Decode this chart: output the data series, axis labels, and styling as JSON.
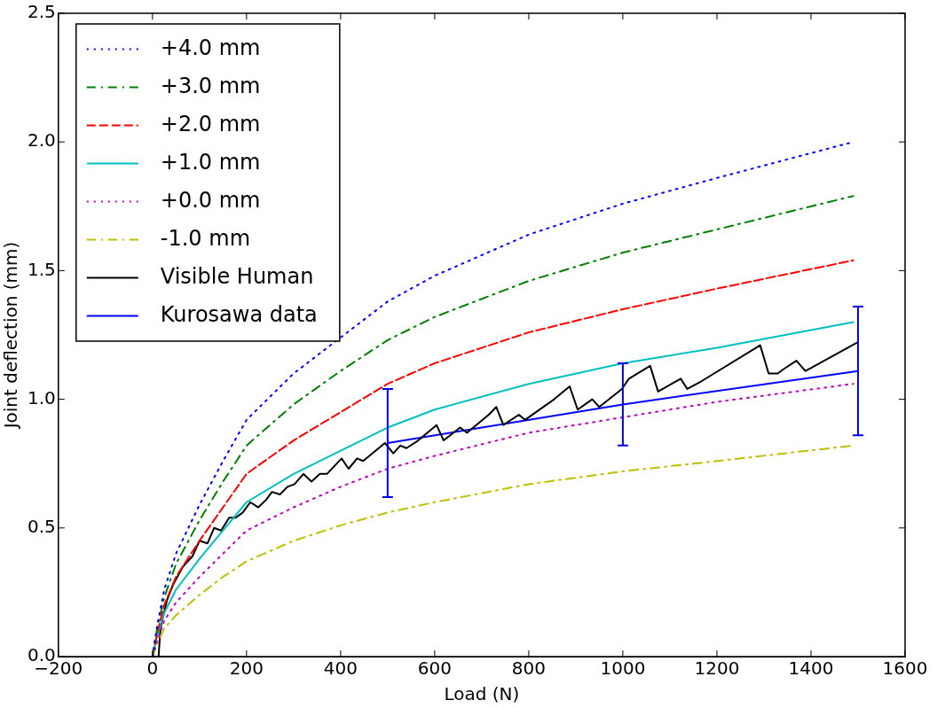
{
  "chart_data": {
    "type": "line",
    "xlabel": "Load (N)",
    "ylabel": "Joint deflection (mm)",
    "xlim": [
      -200,
      1600
    ],
    "xticks": [
      {
        "value": -200,
        "label": "−200"
      },
      0,
      200,
      400,
      600,
      800,
      1000,
      1200,
      1400,
      1600
    ],
    "ylim": [
      0,
      2.5
    ],
    "yticks": [
      {
        "value": 0,
        "label": "0.0"
      },
      {
        "value": 0.5,
        "label": "0.5"
      },
      {
        "value": 1,
        "label": "1.0"
      },
      {
        "value": 1.5,
        "label": "1.5"
      },
      {
        "value": 2,
        "label": "2.0"
      },
      {
        "value": 2.5,
        "label": "2.5"
      }
    ],
    "grid": false,
    "legend": "top left",
    "marker": "none",
    "series": [
      {
        "name": "+4.0 mm",
        "color": "#0000ff",
        "line_style": "dotted",
        "x": [
          0,
          10,
          25,
          50,
          100,
          150,
          200,
          300,
          400,
          500,
          600,
          800,
          1000,
          1200,
          1490
        ],
        "values": [
          0,
          0.12,
          0.26,
          0.4,
          0.59,
          0.76,
          0.92,
          1.1,
          1.24,
          1.38,
          1.48,
          1.64,
          1.76,
          1.86,
          2.0
        ]
      },
      {
        "name": "+3.0 mm",
        "color": "#008000",
        "line_style": "dashdot",
        "x": [
          0,
          10,
          25,
          50,
          100,
          150,
          200,
          300,
          400,
          500,
          600,
          800,
          1000,
          1200,
          1490
        ],
        "values": [
          0,
          0.11,
          0.23,
          0.36,
          0.53,
          0.68,
          0.82,
          0.98,
          1.11,
          1.23,
          1.32,
          1.46,
          1.57,
          1.66,
          1.79
        ]
      },
      {
        "name": "+2.0 mm",
        "color": "#ff0000",
        "line_style": "dashed",
        "x": [
          0,
          10,
          25,
          50,
          100,
          150,
          200,
          300,
          400,
          500,
          600,
          800,
          1000,
          1200,
          1490
        ],
        "values": [
          0,
          0.09,
          0.2,
          0.31,
          0.45,
          0.58,
          0.71,
          0.84,
          0.95,
          1.06,
          1.14,
          1.26,
          1.35,
          1.43,
          1.54
        ]
      },
      {
        "name": "+1.0 mm",
        "color": "#00bfbf",
        "line_style": "solid",
        "x": [
          0,
          10,
          25,
          50,
          100,
          150,
          200,
          300,
          400,
          500,
          600,
          800,
          1000,
          1200,
          1490
        ],
        "values": [
          0,
          0.08,
          0.17,
          0.26,
          0.38,
          0.49,
          0.6,
          0.71,
          0.8,
          0.89,
          0.96,
          1.06,
          1.14,
          1.2,
          1.3
        ]
      },
      {
        "name": "+0.0 mm",
        "color": "#bf00bf",
        "line_style": "dotted",
        "x": [
          0,
          10,
          25,
          50,
          100,
          150,
          200,
          300,
          400,
          500,
          600,
          800,
          1000,
          1200,
          1490
        ],
        "values": [
          0,
          0.06,
          0.14,
          0.21,
          0.31,
          0.4,
          0.49,
          0.58,
          0.66,
          0.73,
          0.78,
          0.87,
          0.93,
          0.99,
          1.06
        ]
      },
      {
        "name": "-1.0 mm",
        "color": "#bfbf00",
        "line_style": "dashdot",
        "x": [
          0,
          10,
          25,
          50,
          100,
          150,
          200,
          300,
          400,
          500,
          600,
          800,
          1000,
          1200,
          1490
        ],
        "values": [
          0,
          0.05,
          0.11,
          0.16,
          0.24,
          0.31,
          0.37,
          0.45,
          0.51,
          0.56,
          0.6,
          0.67,
          0.72,
          0.76,
          0.82
        ]
      },
      {
        "name": "Visible Human",
        "color": "#000000",
        "line_style": "solid",
        "x": [
          170,
          0,
          13,
          17,
          31,
          44,
          65,
          85,
          100,
          117,
          131,
          146,
          163,
          177,
          192,
          208,
          225,
          242,
          254,
          271,
          287,
          302,
          321,
          338,
          356,
          371,
          402,
          417,
          435,
          448,
          494,
          512,
          527,
          540,
          565,
          604,
          619,
          654,
          669,
          715,
          731,
          746,
          779,
          792,
          854,
          887,
          904,
          935,
          950,
          998,
          1013,
          1058,
          1075,
          1123,
          1137,
          1167,
          1292,
          1310,
          1329,
          1344,
          1369,
          1388,
          1398,
          1498
        ],
        "values": [
          0,
          0,
          0,
          0.11,
          0.22,
          0.28,
          0.35,
          0.39,
          0.45,
          0.44,
          0.5,
          0.49,
          0.54,
          0.54,
          0.56,
          0.6,
          0.58,
          0.61,
          0.64,
          0.63,
          0.66,
          0.67,
          0.71,
          0.68,
          0.71,
          0.71,
          0.77,
          0.73,
          0.77,
          0.76,
          0.83,
          0.79,
          0.82,
          0.81,
          0.84,
          0.9,
          0.84,
          0.89,
          0.87,
          0.94,
          0.97,
          0.9,
          0.94,
          0.92,
          1.0,
          1.05,
          0.96,
          1.0,
          0.97,
          1.04,
          1.08,
          1.13,
          1.03,
          1.08,
          1.04,
          1.07,
          1.21,
          1.1,
          1.1,
          1.12,
          1.15,
          1.11,
          1.12,
          1.22
        ]
      },
      {
        "name": "Kurosawa data",
        "color": "#0000ff",
        "line_style": "solid",
        "x": [
          500,
          1000,
          1500
        ],
        "values": [
          0.83,
          0.98,
          1.11
        ],
        "errors": [
          [
            0.62,
            1.04
          ],
          [
            0.82,
            1.14
          ],
          [
            0.86,
            1.36
          ]
        ]
      }
    ]
  }
}
